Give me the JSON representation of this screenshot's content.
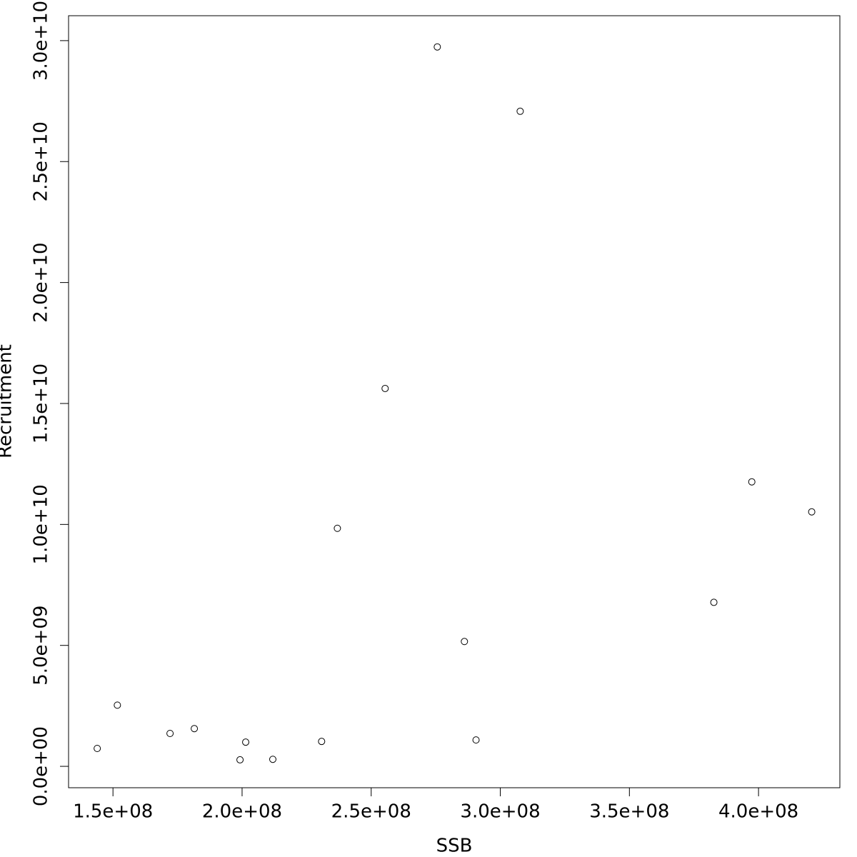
{
  "chart_data": {
    "type": "scatter",
    "x_label": "SSB",
    "y_label": "Recruitment",
    "x": [
      143900000,
      151700000,
      172100000,
      181500000,
      199200000,
      201400000,
      211900000,
      230800000,
      236900000,
      255400000,
      275600000,
      286100000,
      290600000,
      307700000,
      382700000,
      397400000,
      420600000
    ],
    "values": [
      740000000,
      2530000000,
      1360000000,
      1560000000,
      270000000,
      1000000000,
      290000000,
      1030000000,
      9840000000,
      15620000000,
      29740000000,
      5160000000,
      1090000000,
      27080000000,
      6780000000,
      11760000000,
      10520000000
    ],
    "color": "#000000",
    "xlim": [
      132800000,
      431500000
    ],
    "ylim": [
      -884000000,
      31030000000
    ],
    "xticks": [
      {
        "value": 150000000,
        "label": "1.5e+08"
      },
      {
        "value": 200000000,
        "label": "2.0e+08"
      },
      {
        "value": 250000000,
        "label": "2.5e+08"
      },
      {
        "value": 300000000,
        "label": "3.0e+08"
      },
      {
        "value": 350000000,
        "label": "3.5e+08"
      },
      {
        "value": 400000000,
        "label": "4.0e+08"
      }
    ],
    "yticks": [
      {
        "value": 0,
        "label": "0.0e+00"
      },
      {
        "value": 5000000000,
        "label": "5.0e+09"
      },
      {
        "value": 10000000000,
        "label": "1.0e+10"
      },
      {
        "value": 15000000000,
        "label": "1.5e+10"
      },
      {
        "value": 20000000000,
        "label": "2.0e+10"
      },
      {
        "value": 25000000000,
        "label": "2.5e+10"
      },
      {
        "value": 30000000000,
        "label": "3.0e+10"
      }
    ]
  }
}
